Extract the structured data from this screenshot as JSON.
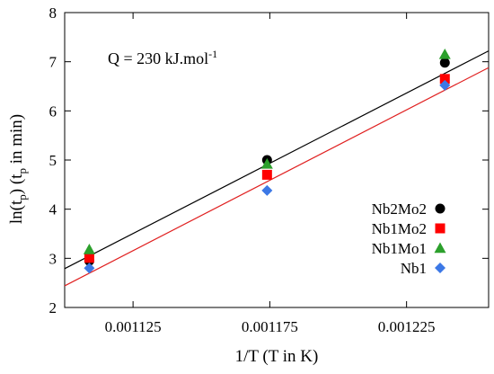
{
  "chart_data": {
    "type": "scatter",
    "title": "",
    "xlabel": "1/T (T in K)",
    "ylabel_main": "ln(t",
    "ylabel_sub1": "p",
    "ylabel_mid": ") (t",
    "ylabel_sub2": "p",
    "ylabel_end": " in min)",
    "annotation_text": "Q = 230 kJ.mol",
    "annotation_sup": "-1",
    "xlim": [
      0.0011,
      0.001255
    ],
    "ylim": [
      2,
      8
    ],
    "grid": false,
    "legend_position": "right",
    "x_ticks": [
      {
        "value": 0.001125,
        "label": "0.001125"
      },
      {
        "value": 0.001175,
        "label": "0.001175"
      },
      {
        "value": 0.001225,
        "label": "0.001225"
      }
    ],
    "y_ticks": [
      {
        "value": 2,
        "label": "2"
      },
      {
        "value": 3,
        "label": "3"
      },
      {
        "value": 4,
        "label": "4"
      },
      {
        "value": 5,
        "label": "5"
      },
      {
        "value": 6,
        "label": "6"
      },
      {
        "value": 7,
        "label": "7"
      },
      {
        "value": 8,
        "label": "8"
      }
    ],
    "series": [
      {
        "name": "Nb2Mo2",
        "marker": "circle",
        "color": "#000000",
        "points": [
          {
            "x": 0.001109,
            "y": 2.95
          },
          {
            "x": 0.001174,
            "y": 5.0
          },
          {
            "x": 0.001239,
            "y": 6.98
          }
        ]
      },
      {
        "name": "Nb1Mo2",
        "marker": "square",
        "color": "#ff0000",
        "points": [
          {
            "x": 0.001109,
            "y": 3.01
          },
          {
            "x": 0.001174,
            "y": 4.7
          },
          {
            "x": 0.001239,
            "y": 6.65
          }
        ]
      },
      {
        "name": "Nb1Mo1",
        "marker": "triangle",
        "color": "#2ca02c",
        "points": [
          {
            "x": 0.001109,
            "y": 3.18
          },
          {
            "x": 0.001174,
            "y": 4.92
          },
          {
            "x": 0.001239,
            "y": 7.15
          }
        ]
      },
      {
        "name": "Nb1",
        "marker": "diamond",
        "color": "#3c78e6",
        "points": [
          {
            "x": 0.001109,
            "y": 2.8
          },
          {
            "x": 0.001174,
            "y": 4.38
          },
          {
            "x": 0.001239,
            "y": 6.52
          }
        ]
      }
    ],
    "fit_lines": [
      {
        "color": "#000000",
        "x": [
          0.0011,
          0.001255
        ],
        "y": [
          2.79,
          7.22
        ]
      },
      {
        "color": "#e02020",
        "x": [
          0.0011,
          0.001255
        ],
        "y": [
          2.44,
          6.88
        ]
      }
    ]
  }
}
